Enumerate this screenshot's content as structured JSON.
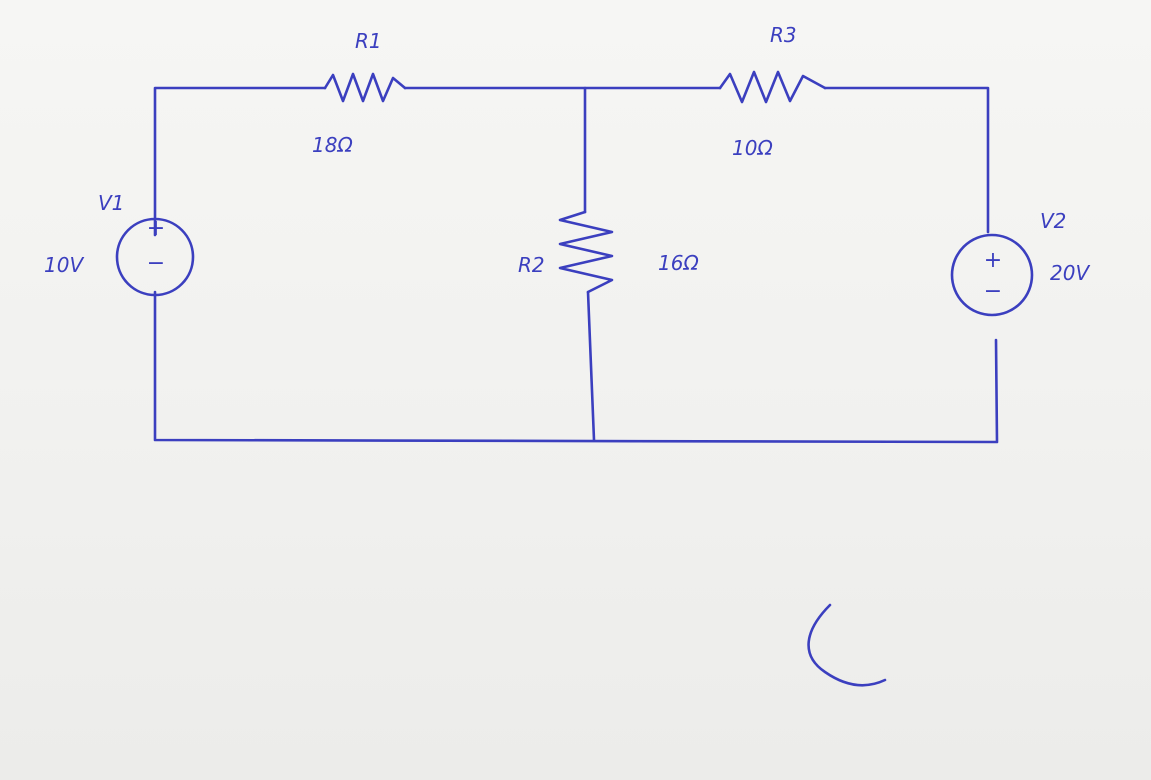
{
  "colors": {
    "ink": "#3b3fbf",
    "paper": "#f3f3f1"
  },
  "circuit": {
    "r1": {
      "name": "R1",
      "value": "18Ω"
    },
    "r2": {
      "name": "R2",
      "value": "16Ω"
    },
    "r3": {
      "name": "R3",
      "value": "10Ω"
    },
    "v1": {
      "name": "V1",
      "value": "10V",
      "plus": "+",
      "minus": "−"
    },
    "v2": {
      "name": "V2",
      "value": "20V",
      "plus": "+",
      "minus": "−"
    }
  }
}
